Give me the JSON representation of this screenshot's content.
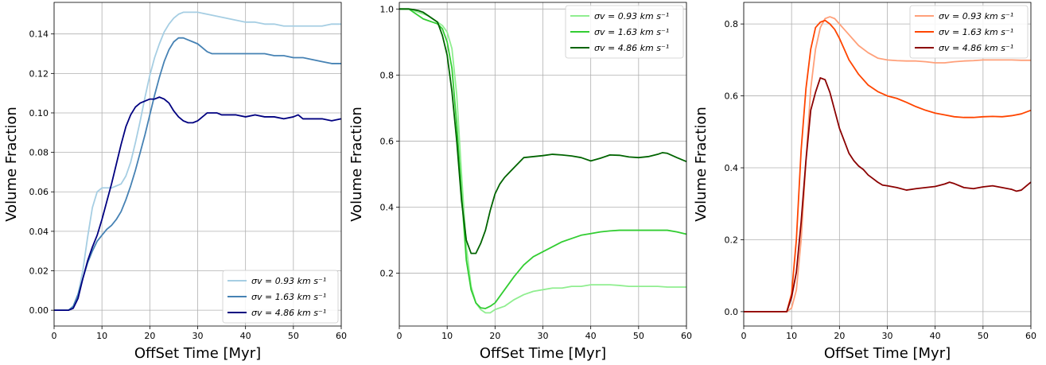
{
  "chart_data": [
    {
      "type": "line",
      "xlabel": "OffSet Time [Myr]",
      "ylabel": "Volume Fraction",
      "xlim": [
        0,
        60
      ],
      "ylim": [
        -0.008,
        0.156
      ],
      "xticks": [
        0,
        10,
        20,
        30,
        40,
        50,
        60
      ],
      "yticks": [
        0.0,
        0.02,
        0.04,
        0.06,
        0.08,
        0.1,
        0.12,
        0.14
      ],
      "ytick_decimals": 2,
      "grid": true,
      "legend_position": "bottom-right",
      "series": [
        {
          "name": "σv = 0.93 km s⁻¹",
          "color": "#a6cee3",
          "x": [
            0,
            3,
            4,
            5,
            6,
            7,
            8,
            9,
            10,
            11,
            12,
            13,
            14,
            15,
            16,
            17,
            18,
            19,
            20,
            21,
            22,
            23,
            24,
            25,
            26,
            27,
            28,
            29,
            30,
            32,
            34,
            36,
            38,
            40,
            42,
            44,
            46,
            48,
            50,
            52,
            54,
            56,
            58,
            60
          ],
          "y": [
            0,
            0,
            0.002,
            0.008,
            0.02,
            0.037,
            0.052,
            0.06,
            0.062,
            0.062,
            0.062,
            0.063,
            0.064,
            0.068,
            0.075,
            0.085,
            0.096,
            0.108,
            0.119,
            0.128,
            0.135,
            0.141,
            0.145,
            0.148,
            0.15,
            0.151,
            0.151,
            0.151,
            0.151,
            0.15,
            0.149,
            0.148,
            0.147,
            0.146,
            0.146,
            0.145,
            0.145,
            0.144,
            0.144,
            0.144,
            0.144,
            0.144,
            0.145,
            0.145
          ]
        },
        {
          "name": "σv = 1.63 km s⁻¹",
          "color": "#4682b4",
          "x": [
            0,
            3,
            4,
            5,
            6,
            7,
            8,
            9,
            10,
            11,
            12,
            13,
            14,
            15,
            16,
            17,
            18,
            19,
            20,
            21,
            22,
            23,
            24,
            25,
            26,
            27,
            28,
            29,
            30,
            31,
            32,
            33,
            34,
            36,
            38,
            40,
            42,
            44,
            46,
            48,
            50,
            52,
            54,
            56,
            58,
            60
          ],
          "y": [
            0,
            0,
            0.002,
            0.008,
            0.016,
            0.024,
            0.03,
            0.035,
            0.038,
            0.041,
            0.043,
            0.046,
            0.05,
            0.056,
            0.063,
            0.071,
            0.08,
            0.089,
            0.099,
            0.109,
            0.118,
            0.126,
            0.132,
            0.136,
            0.138,
            0.138,
            0.137,
            0.136,
            0.135,
            0.133,
            0.131,
            0.13,
            0.13,
            0.13,
            0.13,
            0.13,
            0.13,
            0.13,
            0.129,
            0.129,
            0.128,
            0.128,
            0.127,
            0.126,
            0.125,
            0.125
          ]
        },
        {
          "name": "σv = 4.86 km s⁻¹",
          "color": "#000080",
          "x": [
            0,
            3,
            4,
            5,
            6,
            7,
            8,
            9,
            10,
            11,
            12,
            13,
            14,
            15,
            16,
            17,
            18,
            19,
            20,
            21,
            22,
            23,
            24,
            25,
            26,
            27,
            28,
            29,
            30,
            31,
            32,
            33,
            34,
            35,
            36,
            38,
            40,
            42,
            44,
            46,
            48,
            50,
            51,
            52,
            54,
            56,
            58,
            60
          ],
          "y": [
            0,
            0,
            0.001,
            0.006,
            0.016,
            0.025,
            0.032,
            0.038,
            0.046,
            0.055,
            0.064,
            0.074,
            0.084,
            0.093,
            0.099,
            0.103,
            0.105,
            0.106,
            0.107,
            0.107,
            0.108,
            0.107,
            0.105,
            0.101,
            0.098,
            0.096,
            0.095,
            0.095,
            0.096,
            0.098,
            0.1,
            0.1,
            0.1,
            0.099,
            0.099,
            0.099,
            0.098,
            0.099,
            0.098,
            0.098,
            0.097,
            0.098,
            0.099,
            0.097,
            0.097,
            0.097,
            0.096,
            0.097
          ]
        }
      ]
    },
    {
      "type": "line",
      "xlabel": "OffSet Time [Myr]",
      "ylabel": "Volume Fraction",
      "xlim": [
        0,
        60
      ],
      "ylim": [
        0.04,
        1.02
      ],
      "xticks": [
        0,
        10,
        20,
        30,
        40,
        50,
        60
      ],
      "yticks": [
        0.2,
        0.4,
        0.6,
        0.8,
        1.0
      ],
      "ytick_decimals": 1,
      "grid": true,
      "legend_position": "top-right",
      "series": [
        {
          "name": "σv = 0.93 km s⁻¹",
          "color": "#90ee90",
          "x": [
            0,
            2,
            4,
            6,
            8,
            9,
            10,
            11,
            12,
            13,
            14,
            15,
            16,
            17,
            18,
            19,
            20,
            22,
            24,
            26,
            28,
            30,
            32,
            34,
            36,
            38,
            40,
            42,
            44,
            46,
            48,
            50,
            52,
            54,
            56,
            58,
            60
          ],
          "y": [
            1.0,
            1.0,
            0.99,
            0.98,
            0.96,
            0.95,
            0.93,
            0.88,
            0.74,
            0.5,
            0.28,
            0.16,
            0.11,
            0.09,
            0.08,
            0.08,
            0.09,
            0.1,
            0.12,
            0.135,
            0.145,
            0.15,
            0.155,
            0.155,
            0.16,
            0.16,
            0.165,
            0.165,
            0.165,
            0.163,
            0.16,
            0.16,
            0.16,
            0.16,
            0.158,
            0.158,
            0.158
          ]
        },
        {
          "name": "σv = 1.63 km s⁻¹",
          "color": "#32cd32",
          "x": [
            0,
            2,
            3,
            4,
            5,
            6,
            7,
            8,
            9,
            10,
            11,
            12,
            13,
            14,
            15,
            16,
            17,
            18,
            19,
            20,
            22,
            24,
            26,
            28,
            30,
            32,
            34,
            36,
            38,
            40,
            42,
            44,
            46,
            48,
            50,
            52,
            54,
            56,
            58,
            60
          ],
          "y": [
            1.0,
            1.0,
            0.99,
            0.98,
            0.97,
            0.965,
            0.96,
            0.955,
            0.94,
            0.9,
            0.82,
            0.65,
            0.44,
            0.24,
            0.15,
            0.11,
            0.095,
            0.093,
            0.1,
            0.11,
            0.15,
            0.19,
            0.225,
            0.25,
            0.265,
            0.28,
            0.295,
            0.305,
            0.315,
            0.32,
            0.325,
            0.328,
            0.33,
            0.33,
            0.33,
            0.33,
            0.33,
            0.33,
            0.325,
            0.318
          ]
        },
        {
          "name": "σv = 4.86 km s⁻¹",
          "color": "#006400",
          "x": [
            0,
            2,
            3,
            4,
            5,
            6,
            7,
            8,
            9,
            10,
            11,
            12,
            13,
            14,
            15,
            16,
            17,
            18,
            19,
            20,
            21,
            22,
            24,
            26,
            28,
            30,
            32,
            34,
            36,
            38,
            40,
            42,
            44,
            46,
            48,
            50,
            52,
            54,
            55,
            56,
            58,
            60
          ],
          "y": [
            1.0,
            1.0,
            0.998,
            0.995,
            0.99,
            0.98,
            0.97,
            0.96,
            0.92,
            0.86,
            0.75,
            0.6,
            0.42,
            0.3,
            0.26,
            0.26,
            0.29,
            0.33,
            0.39,
            0.44,
            0.47,
            0.49,
            0.52,
            0.55,
            0.553,
            0.556,
            0.56,
            0.558,
            0.555,
            0.55,
            0.54,
            0.548,
            0.558,
            0.557,
            0.552,
            0.55,
            0.553,
            0.56,
            0.565,
            0.563,
            0.55,
            0.538
          ]
        }
      ]
    },
    {
      "type": "line",
      "xlabel": "OffSet Time [Myr]",
      "ylabel": "Volume Fraction",
      "xlim": [
        0,
        60
      ],
      "ylim": [
        -0.04,
        0.86
      ],
      "xticks": [
        0,
        10,
        20,
        30,
        40,
        50,
        60
      ],
      "yticks": [
        0.0,
        0.2,
        0.4,
        0.6,
        0.8
      ],
      "ytick_decimals": 1,
      "grid": true,
      "legend_position": "top-right",
      "series": [
        {
          "name": "σv = 0.93 km s⁻¹",
          "color": "#ffa07a",
          "x": [
            0,
            5,
            9,
            10,
            11,
            12,
            13,
            14,
            15,
            16,
            17,
            18,
            19,
            20,
            21,
            22,
            23,
            24,
            26,
            28,
            30,
            32,
            34,
            36,
            38,
            40,
            42,
            44,
            46,
            48,
            50,
            52,
            54,
            56,
            58,
            60
          ],
          "y": [
            0,
            0,
            0,
            0.01,
            0.06,
            0.2,
            0.42,
            0.62,
            0.73,
            0.79,
            0.815,
            0.82,
            0.815,
            0.8,
            0.785,
            0.77,
            0.755,
            0.74,
            0.72,
            0.705,
            0.7,
            0.698,
            0.697,
            0.697,
            0.695,
            0.692,
            0.692,
            0.695,
            0.697,
            0.698,
            0.7,
            0.7,
            0.7,
            0.7,
            0.699,
            0.699
          ]
        },
        {
          "name": "σv = 1.63 km s⁻¹",
          "color": "#ff4500",
          "x": [
            0,
            5,
            9,
            10,
            11,
            12,
            13,
            14,
            15,
            16,
            17,
            18,
            19,
            20,
            21,
            22,
            23,
            24,
            26,
            28,
            30,
            32,
            34,
            36,
            38,
            40,
            42,
            44,
            46,
            48,
            50,
            52,
            54,
            56,
            58,
            60
          ],
          "y": [
            0,
            0,
            0,
            0.05,
            0.2,
            0.45,
            0.62,
            0.73,
            0.79,
            0.805,
            0.81,
            0.8,
            0.785,
            0.76,
            0.73,
            0.7,
            0.68,
            0.66,
            0.63,
            0.612,
            0.6,
            0.593,
            0.582,
            0.57,
            0.56,
            0.552,
            0.547,
            0.542,
            0.54,
            0.54,
            0.542,
            0.543,
            0.542,
            0.545,
            0.55,
            0.56
          ]
        },
        {
          "name": "σv = 4.86 km s⁻¹",
          "color": "#8b0000",
          "x": [
            0,
            5,
            9,
            10,
            11,
            12,
            13,
            14,
            15,
            16,
            17,
            18,
            19,
            20,
            21,
            22,
            23,
            24,
            25,
            26,
            27,
            28,
            29,
            30,
            32,
            34,
            36,
            38,
            40,
            42,
            43,
            44,
            46,
            48,
            50,
            52,
            54,
            56,
            57,
            58,
            60
          ],
          "y": [
            0,
            0,
            0,
            0.04,
            0.11,
            0.25,
            0.42,
            0.56,
            0.61,
            0.65,
            0.645,
            0.61,
            0.56,
            0.51,
            0.475,
            0.44,
            0.42,
            0.405,
            0.395,
            0.38,
            0.37,
            0.36,
            0.352,
            0.35,
            0.345,
            0.338,
            0.342,
            0.345,
            0.348,
            0.355,
            0.36,
            0.356,
            0.345,
            0.342,
            0.347,
            0.35,
            0.345,
            0.34,
            0.335,
            0.338,
            0.36
          ]
        }
      ]
    }
  ]
}
